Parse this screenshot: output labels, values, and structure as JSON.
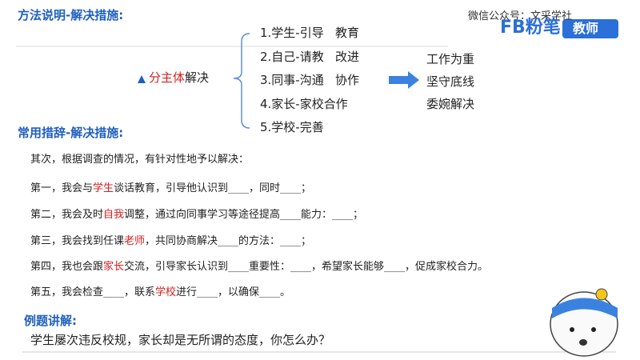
{
  "header": {
    "title": "方法说明-解决措施:",
    "watermark": "微信公众号：文采学社",
    "logo": "FB粉笔",
    "logo_tag": "教师"
  },
  "method": {
    "label": [
      "分主体",
      "解决"
    ],
    "items": [
      "1.学生-引导   教育",
      "2.自己-请教   改进",
      "3.同事-沟通   协作",
      "4.家长-家校合作",
      "5.学校-完善"
    ],
    "outcomes": [
      "工作为重",
      "坚守底线",
      "委婉解决"
    ]
  },
  "phrases": {
    "title": "常用措辞-解决措施:",
    "lines": [
      [
        "其次，根据调查的情况，有针对性地予以解决："
      ],
      [
        "第一，我会与",
        "学生",
        "谈话教育，引导他认识到____，同时____；"
      ],
      [
        "第二，我会及时",
        "自我",
        "调整，通过向同事学习等途径提高____能力：____；"
      ],
      [
        "第三，我会找到任课",
        "老师",
        "，共同协商解决____的方法：____；"
      ],
      [
        "第四，我也会跟",
        "家长",
        "交流，引导家长认识到____重要性：____，希望家长能够____，促成家校合力。"
      ],
      [
        "第五，我会检查____，联系",
        "学校",
        "进行____，以确保____。"
      ]
    ]
  },
  "example": {
    "title": "例题讲解:",
    "question": "学生屡次违反校规，家长却是无所谓的态度，你怎么办？"
  }
}
